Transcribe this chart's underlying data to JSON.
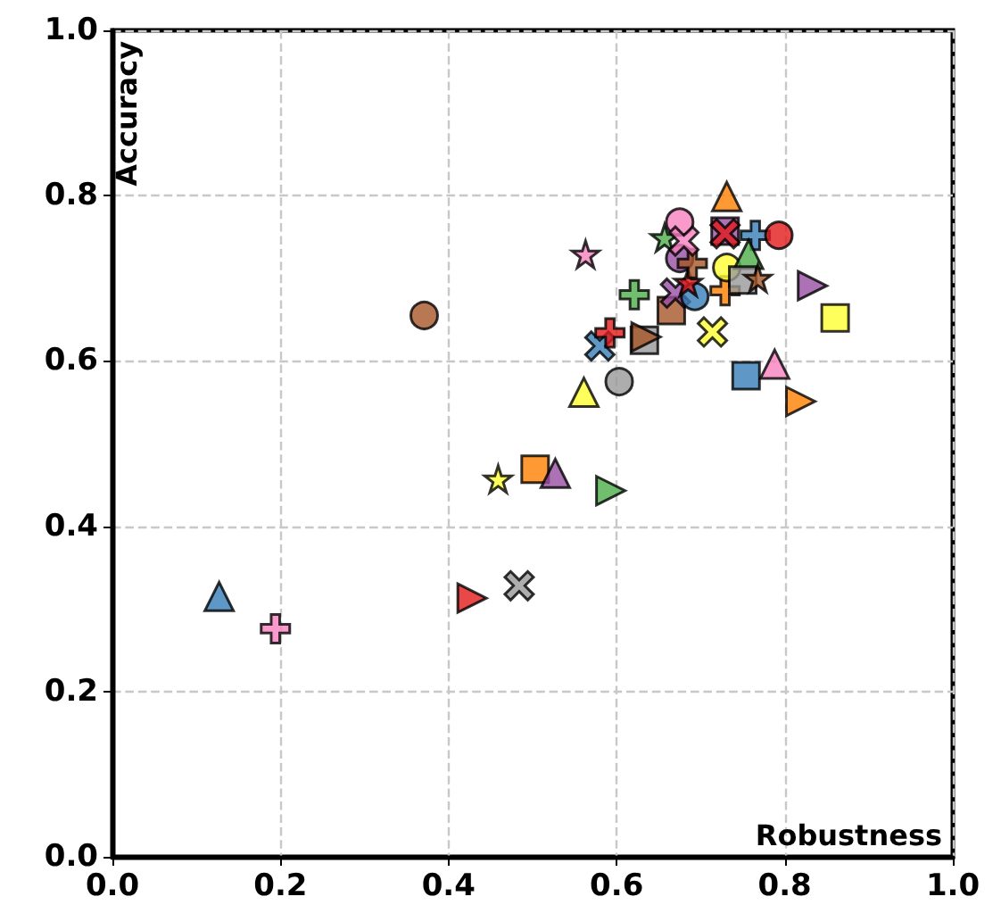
{
  "chart_data": {
    "type": "scatter",
    "xlabel": "Robustness",
    "ylabel": "Accuracy",
    "xlim": [
      0,
      1
    ],
    "ylim": [
      0,
      1
    ],
    "xticks": [
      {
        "value": 0,
        "label": "0.0"
      },
      {
        "value": 0.2,
        "label": "0.2"
      },
      {
        "value": 0.4,
        "label": "0.4"
      },
      {
        "value": 0.6,
        "label": "0.6"
      },
      {
        "value": 0.8,
        "label": "0.8"
      },
      {
        "value": 1,
        "label": "1.0"
      }
    ],
    "yticks": [
      {
        "value": 0,
        "label": "0.0"
      },
      {
        "value": 0.2,
        "label": "0.2"
      },
      {
        "value": 0.4,
        "label": "0.4"
      },
      {
        "value": 0.6,
        "label": "0.6"
      },
      {
        "value": 0.8,
        "label": "0.8"
      },
      {
        "value": 1,
        "label": "1.0"
      }
    ],
    "grid": true,
    "series": [
      {
        "marker": "triangle",
        "color": "#377eb8",
        "x": [
          0.127
        ],
        "values": [
          0.315
        ]
      },
      {
        "marker": "plus",
        "color": "#f781bf",
        "x": [
          0.194
        ],
        "values": [
          0.276
        ]
      },
      {
        "marker": "circle",
        "color": "#a65628",
        "x": [
          0.371
        ],
        "values": [
          0.655
        ]
      },
      {
        "marker": "triangle-right",
        "color": "#e41a1c",
        "x": [
          0.428
        ],
        "values": [
          0.313
        ]
      },
      {
        "marker": "cross",
        "color": "#999999",
        "x": [
          0.484
        ],
        "values": [
          0.328
        ]
      },
      {
        "marker": "star",
        "color": "#ffff33",
        "x": [
          0.459
        ],
        "values": [
          0.457
        ]
      },
      {
        "marker": "square",
        "color": "#ff7f00",
        "x": [
          0.503
        ],
        "values": [
          0.469
        ]
      },
      {
        "marker": "triangle",
        "color": "#984ea3",
        "x": [
          0.527
        ],
        "values": [
          0.464
        ]
      },
      {
        "marker": "triangle-right",
        "color": "#4daf4a",
        "x": [
          0.593
        ],
        "values": [
          0.443
        ]
      },
      {
        "marker": "triangle",
        "color": "#ffff33",
        "x": [
          0.561
        ],
        "values": [
          0.562
        ]
      },
      {
        "marker": "circle",
        "color": "#999999",
        "x": [
          0.603
        ],
        "values": [
          0.575
        ]
      },
      {
        "marker": "cross",
        "color": "#377eb8",
        "x": [
          0.58
        ],
        "values": [
          0.618
        ]
      },
      {
        "marker": "plus",
        "color": "#e41a1c",
        "x": [
          0.592
        ],
        "values": [
          0.634
        ]
      },
      {
        "marker": "square",
        "color": "#999999",
        "x": [
          0.633
        ],
        "values": [
          0.625
        ]
      },
      {
        "marker": "triangle-right",
        "color": "#a65628",
        "x": [
          0.635
        ],
        "values": [
          0.629
        ]
      },
      {
        "marker": "star",
        "color": "#f781bf",
        "x": [
          0.563
        ],
        "values": [
          0.729
        ]
      },
      {
        "marker": "plus",
        "color": "#4daf4a",
        "x": [
          0.621
        ],
        "values": [
          0.68
        ]
      },
      {
        "marker": "square",
        "color": "#a65628",
        "x": [
          0.665
        ],
        "values": [
          0.661
        ]
      },
      {
        "marker": "cross",
        "color": "#984ea3",
        "x": [
          0.67
        ],
        "values": [
          0.682
        ]
      },
      {
        "marker": "circle",
        "color": "#377eb8",
        "x": [
          0.693
        ],
        "values": [
          0.678
        ]
      },
      {
        "marker": "star",
        "color": "#e41a1c",
        "x": [
          0.685
        ],
        "values": [
          0.695
        ]
      },
      {
        "marker": "cross",
        "color": "#ffff33",
        "x": [
          0.714
        ],
        "values": [
          0.635
        ]
      },
      {
        "marker": "plus",
        "color": "#ff7f00",
        "x": [
          0.729
        ],
        "values": [
          0.685
        ]
      },
      {
        "marker": "circle",
        "color": "#984ea3",
        "x": [
          0.675
        ],
        "values": [
          0.724
        ]
      },
      {
        "marker": "plus",
        "color": "#a65628",
        "x": [
          0.69
        ],
        "values": [
          0.718
        ]
      },
      {
        "marker": "circle",
        "color": "#f781bf",
        "x": [
          0.675
        ],
        "values": [
          0.768
        ]
      },
      {
        "marker": "star",
        "color": "#4daf4a",
        "x": [
          0.657
        ],
        "values": [
          0.749
        ]
      },
      {
        "marker": "cross",
        "color": "#f781bf",
        "x": [
          0.68
        ],
        "values": [
          0.745
        ]
      },
      {
        "marker": "circle",
        "color": "#ffff33",
        "x": [
          0.731
        ],
        "values": [
          0.713
        ]
      },
      {
        "marker": "triangle",
        "color": "#ff7f00",
        "x": [
          0.731
        ],
        "values": [
          0.799
        ]
      },
      {
        "marker": "square",
        "color": "#984ea3",
        "x": [
          0.729
        ],
        "values": [
          0.757
        ]
      },
      {
        "marker": "cross",
        "color": "#e41a1c",
        "x": [
          0.729
        ],
        "values": [
          0.754
        ]
      },
      {
        "marker": "plus",
        "color": "#377eb8",
        "x": [
          0.765
        ],
        "values": [
          0.752
        ]
      },
      {
        "marker": "circle",
        "color": "#e41a1c",
        "x": [
          0.793
        ],
        "values": [
          0.752
        ]
      },
      {
        "marker": "triangle",
        "color": "#4daf4a",
        "x": [
          0.757
        ],
        "values": [
          0.729
        ]
      },
      {
        "marker": "square",
        "color": "#999999",
        "x": [
          0.75
        ],
        "values": [
          0.698
        ]
      },
      {
        "marker": "star",
        "color": "#a65628",
        "x": [
          0.768
        ],
        "values": [
          0.7
        ]
      },
      {
        "marker": "triangle-right",
        "color": "#984ea3",
        "x": [
          0.833
        ],
        "values": [
          0.691
        ]
      },
      {
        "marker": "square",
        "color": "#ffff33",
        "x": [
          0.86
        ],
        "values": [
          0.652
        ]
      },
      {
        "marker": "square",
        "color": "#377eb8",
        "x": [
          0.754
        ],
        "values": [
          0.582
        ]
      },
      {
        "marker": "triangle",
        "color": "#f781bf",
        "x": [
          0.788
        ],
        "values": [
          0.596
        ]
      },
      {
        "marker": "triangle-right",
        "color": "#ff7f00",
        "x": [
          0.819
        ],
        "values": [
          0.551
        ]
      }
    ]
  }
}
